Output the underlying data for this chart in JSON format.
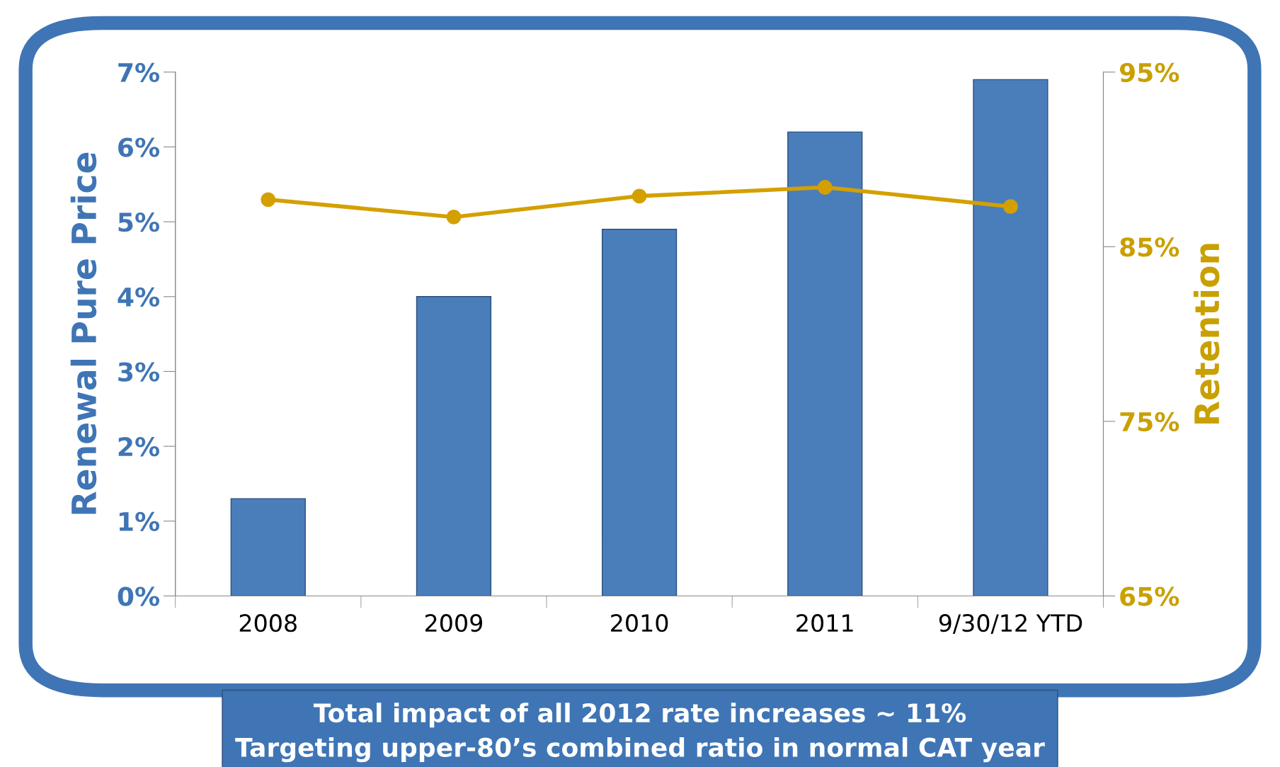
{
  "chart_data": {
    "type": "bar",
    "categories": [
      "2008",
      "2009",
      "2010",
      "2011",
      "9/30/12 YTD"
    ],
    "series": [
      {
        "color": "#4a7ebb",
        "values": [
          1.3,
          4.0,
          4.9,
          6.2,
          6.9
        ]
      },
      {
        "type": "line",
        "axis": "y2",
        "color": "#d4a000",
        "values": [
          87.7,
          86.7,
          87.9,
          88.4,
          87.3
        ]
      }
    ],
    "ylabel": "Renewal Pure Price",
    "y2label": "Retention",
    "ylim": [
      0,
      7
    ],
    "yticks": [
      {
        "value": 0,
        "label": "0%"
      },
      {
        "value": 1,
        "label": "1%"
      },
      {
        "value": 2,
        "label": "2%"
      },
      {
        "value": 3,
        "label": "3%"
      },
      {
        "value": 4,
        "label": "4%"
      },
      {
        "value": 5,
        "label": "5%"
      },
      {
        "value": 6,
        "label": "6%"
      },
      {
        "value": 7,
        "label": "7%"
      }
    ],
    "y2lim": [
      65,
      95
    ],
    "y2ticks": [
      {
        "value": 65,
        "label": "65%"
      },
      {
        "value": 75,
        "label": "75%"
      },
      {
        "value": 85,
        "label": "85%"
      },
      {
        "value": 95,
        "label": "95%"
      }
    ],
    "marker": "circle",
    "line_style": "solid",
    "grid": false,
    "legend": false,
    "annotations": [
      "Total impact of all 2012 rate increases ~ 11%\nTargeting upper-80’s combined ratio in normal CAT year"
    ]
  }
}
